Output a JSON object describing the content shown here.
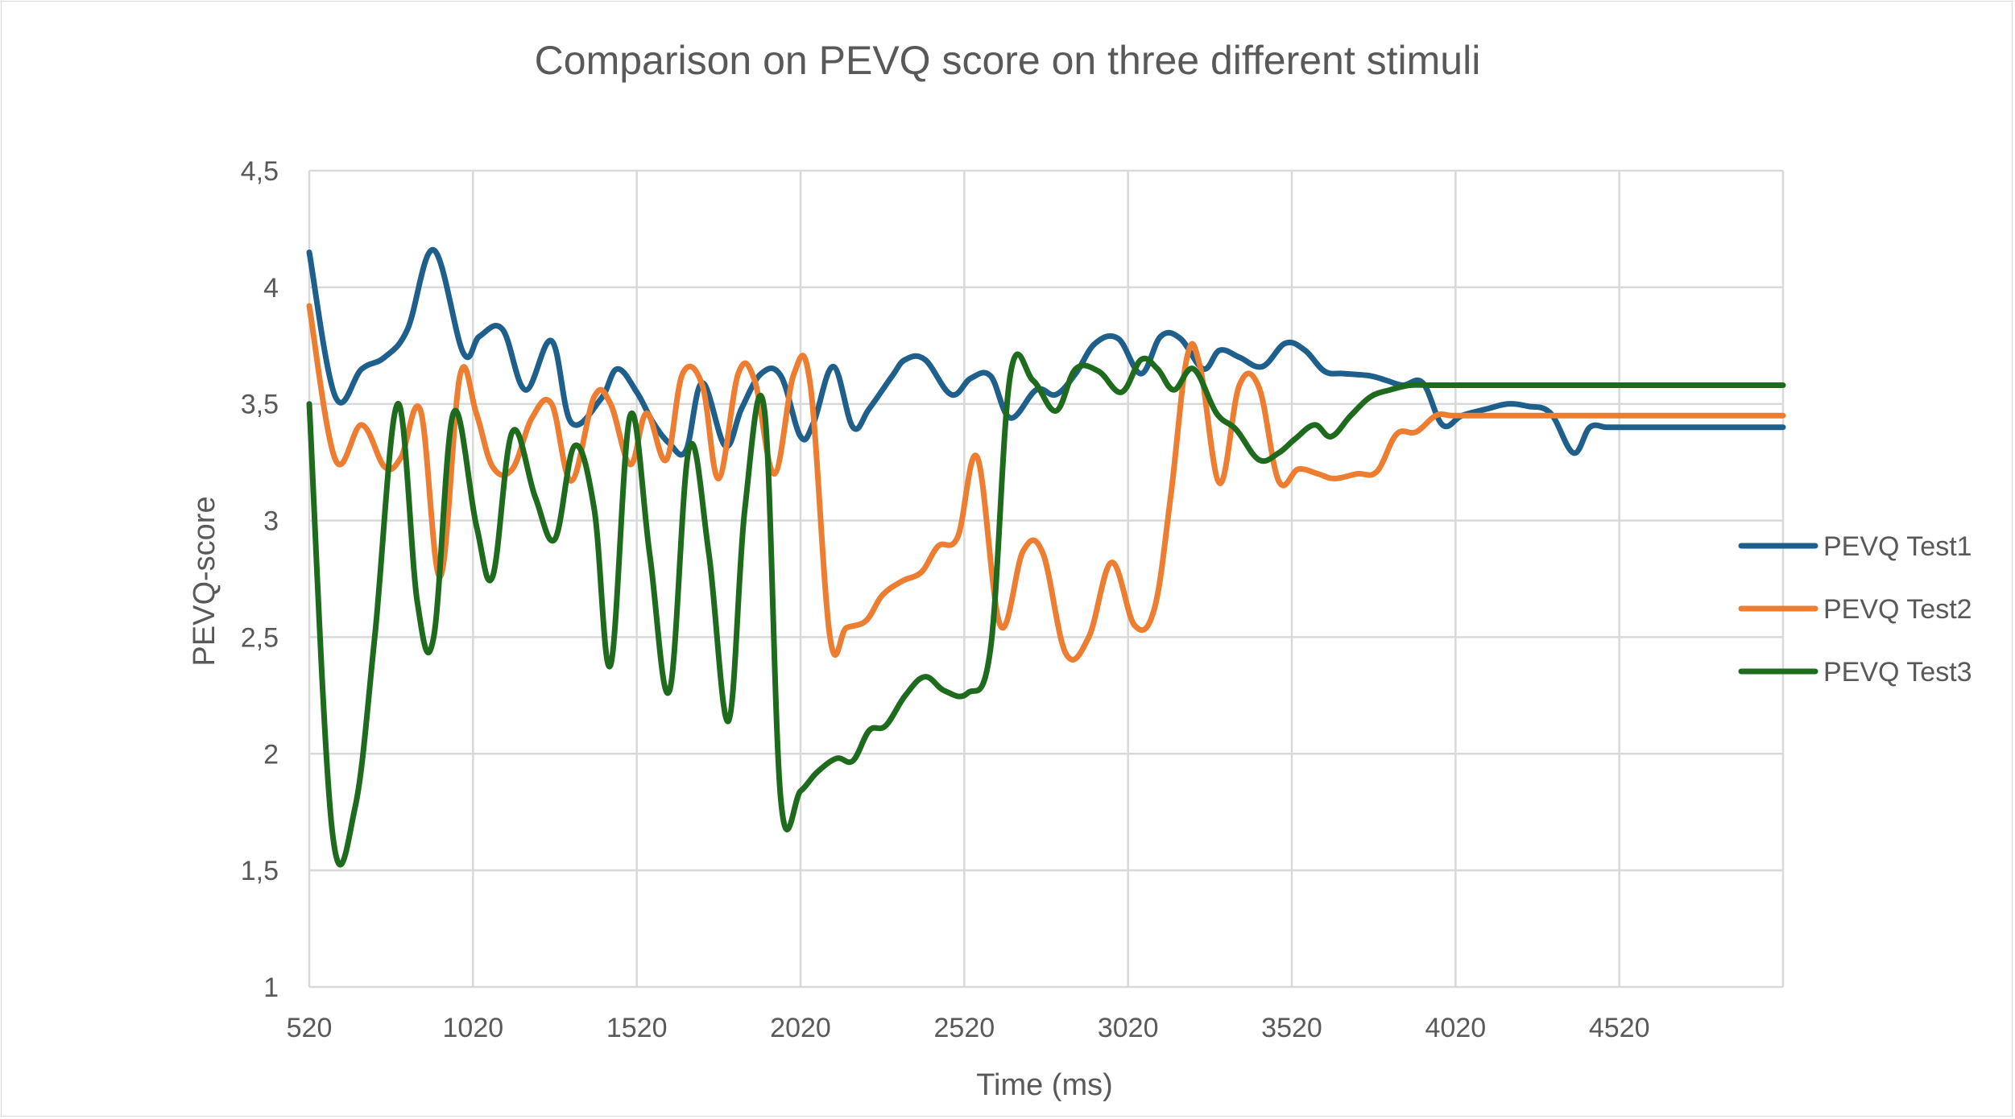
{
  "chart_data": {
    "type": "line",
    "title": "Comparison on PEVQ score on three different stimuli",
    "xlabel": "Time (ms)",
    "ylabel": "PEVQ-score",
    "xlim": [
      520,
      5020
    ],
    "ylim": [
      1,
      4.5
    ],
    "x_ticks": [
      "520",
      "1020",
      "1520",
      "2020",
      "2520",
      "3020",
      "3520",
      "4020",
      "4520"
    ],
    "y_ticks": [
      "1",
      "1,5",
      "2",
      "2,5",
      "3",
      "3,5",
      "4",
      "4,5"
    ],
    "grid": "vertical and horizontal",
    "legend_position": "right",
    "series": [
      {
        "name": "PEVQ Test1",
        "color": "#1f5f8b",
        "x": [
          520,
          600,
          680,
          750,
          820,
          900,
          990,
          1040,
          1110,
          1180,
          1260,
          1320,
          1410,
          1460,
          1520,
          1570,
          1620,
          1670,
          1720,
          1790,
          1840,
          1900,
          1960,
          2020,
          2060,
          2120,
          2180,
          2230,
          2300,
          2340,
          2400,
          2480,
          2540,
          2600,
          2660,
          2740,
          2800,
          2860,
          2920,
          2990,
          3060,
          3120,
          3180,
          3250,
          3300,
          3360,
          3430,
          3500,
          3560,
          3620,
          3680,
          3760,
          3810,
          3860,
          3920,
          3980,
          4040,
          4120,
          4180,
          4240,
          4310,
          4380,
          4430,
          4480,
          4530,
          4580,
          4640,
          4700,
          4760,
          4830,
          4880,
          4940,
          5020
        ],
        "values": [
          4.15,
          3.53,
          3.65,
          3.7,
          3.82,
          4.16,
          3.72,
          3.79,
          3.82,
          3.56,
          3.77,
          3.42,
          3.52,
          3.65,
          3.55,
          3.42,
          3.33,
          3.3,
          3.59,
          3.32,
          3.48,
          3.63,
          3.62,
          3.36,
          3.42,
          3.66,
          3.4,
          3.48,
          3.62,
          3.69,
          3.69,
          3.54,
          3.61,
          3.62,
          3.44,
          3.56,
          3.54,
          3.63,
          3.76,
          3.78,
          3.63,
          3.79,
          3.78,
          3.65,
          3.73,
          3.7,
          3.66,
          3.76,
          3.73,
          3.64,
          3.63,
          3.62,
          3.6,
          3.58,
          3.59,
          3.41,
          3.45,
          3.48,
          3.5,
          3.49,
          3.46,
          3.29,
          3.4,
          3.4,
          3.4,
          3.4,
          3.4,
          3.4,
          3.4,
          3.4,
          3.4,
          3.4,
          3.4
        ]
      },
      {
        "name": "PEVQ Test2",
        "color": "#ed7d31",
        "x": [
          520,
          600,
          680,
          750,
          800,
          860,
          920,
          980,
          1030,
          1080,
          1140,
          1200,
          1260,
          1320,
          1390,
          1440,
          1500,
          1550,
          1610,
          1660,
          1720,
          1770,
          1830,
          1880,
          1940,
          2000,
          2050,
          2110,
          2160,
          2220,
          2270,
          2330,
          2390,
          2440,
          2500,
          2560,
          2630,
          2700,
          2760,
          2830,
          2900,
          2970,
          3040,
          3100,
          3150,
          3200,
          3240,
          3300,
          3360,
          3420,
          3480,
          3540,
          3600,
          3650,
          3720,
          3780,
          3840,
          3900,
          3960,
          4010,
          4080,
          4130,
          4180,
          4230,
          4300,
          4360,
          4420,
          4480,
          4540,
          4600,
          4660,
          4720,
          4780,
          4840,
          4900,
          4960,
          5020
        ],
        "values": [
          3.92,
          3.26,
          3.41,
          3.23,
          3.27,
          3.47,
          2.76,
          3.62,
          3.46,
          3.23,
          3.22,
          3.44,
          3.5,
          3.17,
          3.53,
          3.5,
          3.24,
          3.46,
          3.26,
          3.63,
          3.58,
          3.18,
          3.63,
          3.6,
          3.2,
          3.63,
          3.58,
          2.5,
          2.54,
          2.57,
          2.68,
          2.74,
          2.78,
          2.89,
          2.93,
          3.27,
          2.55,
          2.87,
          2.86,
          2.43,
          2.5,
          2.82,
          2.55,
          2.62,
          3.1,
          3.7,
          3.66,
          3.16,
          3.58,
          3.57,
          3.17,
          3.22,
          3.2,
          3.18,
          3.2,
          3.21,
          3.37,
          3.38,
          3.45,
          3.45,
          3.45,
          3.45,
          3.45,
          3.45,
          3.45,
          3.45,
          3.45,
          3.45,
          3.45,
          3.45,
          3.45,
          3.45,
          3.45,
          3.45,
          3.45,
          3.45,
          3.45
        ]
      },
      {
        "name": "PEVQ Test3",
        "color": "#1e6b1e",
        "x": [
          520,
          590,
          660,
          720,
          790,
          850,
          900,
          960,
          1030,
          1080,
          1140,
          1210,
          1270,
          1330,
          1390,
          1440,
          1500,
          1560,
          1620,
          1680,
          1740,
          1800,
          1850,
          1910,
          1960,
          2020,
          2070,
          2130,
          2180,
          2230,
          2280,
          2340,
          2400,
          2460,
          2530,
          2600,
          2660,
          2730,
          2800,
          2860,
          2930,
          3000,
          3060,
          3110,
          3160,
          3220,
          3290,
          3350,
          3420,
          3480,
          3530,
          3590,
          3640,
          3700,
          3760,
          3820,
          3880,
          3940,
          4000,
          4050,
          4110,
          4160,
          4210,
          4270,
          4330,
          4380,
          4440,
          4500,
          4560,
          4620,
          4680,
          4740,
          4800,
          4860,
          4920,
          4980,
          5020
        ],
        "values": [
          3.5,
          1.67,
          1.77,
          2.5,
          3.5,
          2.65,
          2.5,
          3.46,
          2.98,
          2.76,
          3.38,
          3.1,
          2.92,
          3.32,
          3.05,
          2.38,
          3.45,
          2.85,
          2.27,
          3.31,
          2.86,
          2.14,
          3.05,
          3.47,
          1.8,
          1.84,
          1.92,
          1.98,
          1.97,
          2.1,
          2.12,
          2.25,
          2.33,
          2.27,
          2.26,
          2.45,
          3.62,
          3.6,
          3.47,
          3.65,
          3.64,
          3.55,
          3.69,
          3.65,
          3.56,
          3.65,
          3.46,
          3.39,
          3.26,
          3.29,
          3.35,
          3.41,
          3.36,
          3.45,
          3.53,
          3.56,
          3.58,
          3.58,
          3.58,
          3.58,
          3.58,
          3.58,
          3.58,
          3.58,
          3.58,
          3.58,
          3.58,
          3.58,
          3.58,
          3.58,
          3.58,
          3.58,
          3.58,
          3.58,
          3.58,
          3.58,
          3.58
        ]
      }
    ]
  }
}
